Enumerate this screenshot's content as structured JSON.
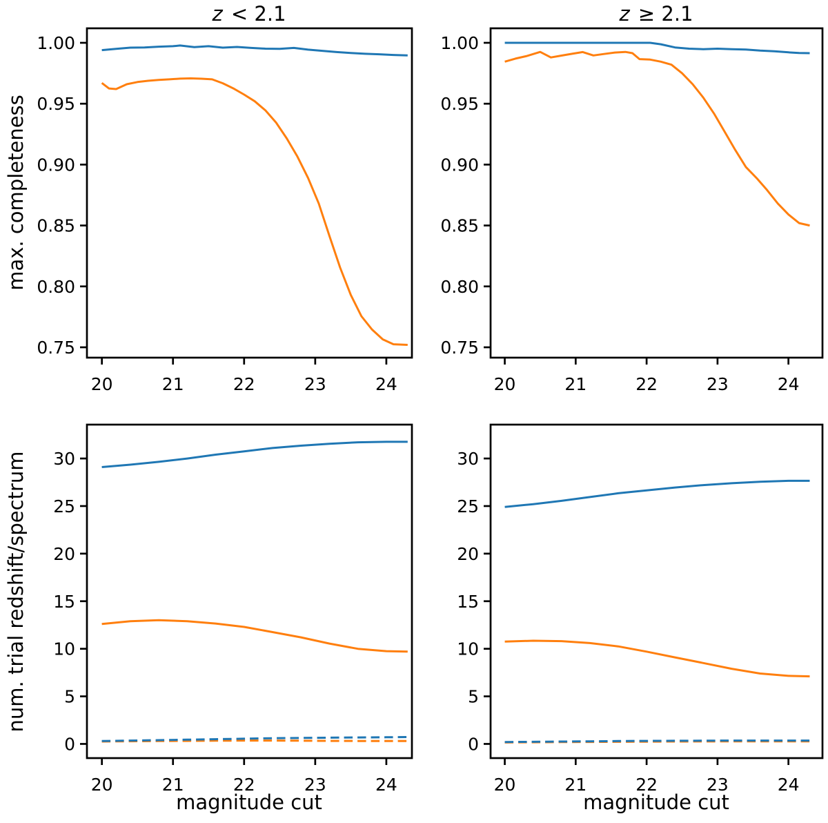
{
  "figure": {
    "background": "#ffffff",
    "columns": [
      {
        "title_var": "z",
        "title_rest": " < 2.1"
      },
      {
        "title_var": "z",
        "title_rest": " ≥ 2.1"
      }
    ]
  },
  "colors": {
    "blue": "#1f77b4",
    "orange": "#ff7f0e",
    "axis": "#000000"
  },
  "chart_data": [
    {
      "type": "line",
      "position": "top-left",
      "title": "z < 2.1",
      "xlabel": "",
      "ylabel": "max. completeness",
      "xlim": [
        19.79,
        24.36
      ],
      "ylim": [
        0.7415,
        1.0119
      ],
      "grid": false,
      "legend": "none",
      "xticks": {
        "values": [
          20,
          21,
          22,
          23,
          24
        ],
        "labels": [
          "20",
          "21",
          "22",
          "23",
          "24"
        ]
      },
      "yticks": {
        "values": [
          0.75,
          0.8,
          0.85,
          0.9,
          0.95,
          1.0
        ],
        "labels": [
          "0.75",
          "0.80",
          "0.85",
          "0.90",
          "0.95",
          "1.00"
        ]
      },
      "series": [
        {
          "name": "blue-solid",
          "color": "blue",
          "style": "solid",
          "x": [
            20.0,
            20.2,
            20.4,
            20.6,
            20.8,
            21.0,
            21.1,
            21.3,
            21.5,
            21.7,
            21.9,
            22.1,
            22.3,
            22.5,
            22.7,
            22.9,
            23.1,
            23.3,
            23.5,
            23.7,
            23.9,
            24.1,
            24.3
          ],
          "y": [
            0.994,
            0.995,
            0.996,
            0.9962,
            0.9968,
            0.9972,
            0.9978,
            0.9965,
            0.9972,
            0.996,
            0.9966,
            0.9958,
            0.9952,
            0.995,
            0.9958,
            0.9944,
            0.9934,
            0.9924,
            0.9916,
            0.991,
            0.9906,
            0.99,
            0.9896
          ]
        },
        {
          "name": "orange-solid",
          "color": "orange",
          "style": "solid",
          "x": [
            20.0,
            20.1,
            20.2,
            20.35,
            20.5,
            20.65,
            20.8,
            20.95,
            21.1,
            21.25,
            21.4,
            21.55,
            21.7,
            21.85,
            22.0,
            22.15,
            22.3,
            22.45,
            22.6,
            22.75,
            22.9,
            23.05,
            23.2,
            23.35,
            23.5,
            23.65,
            23.8,
            23.95,
            24.1,
            24.3
          ],
          "y": [
            0.967,
            0.9625,
            0.962,
            0.966,
            0.9678,
            0.9688,
            0.9695,
            0.97,
            0.9706,
            0.9708,
            0.9705,
            0.97,
            0.9668,
            0.9625,
            0.9575,
            0.952,
            0.9445,
            0.9345,
            0.9215,
            0.9065,
            0.889,
            0.868,
            0.8415,
            0.8155,
            0.793,
            0.7755,
            0.7645,
            0.7565,
            0.7525,
            0.752
          ]
        }
      ]
    },
    {
      "type": "line",
      "position": "top-right",
      "title": "z ≥ 2.1",
      "xlabel": "",
      "ylabel": "",
      "xlim": [
        19.8,
        24.48
      ],
      "ylim": [
        0.7415,
        1.0119
      ],
      "grid": false,
      "legend": "none",
      "xticks": {
        "values": [
          20,
          21,
          22,
          23,
          24
        ],
        "labels": [
          "20",
          "21",
          "22",
          "23",
          "24"
        ]
      },
      "yticks": {
        "values": [
          0.75,
          0.8,
          0.85,
          0.9,
          0.95,
          1.0
        ],
        "labels": [
          "0.75",
          "0.80",
          "0.85",
          "0.90",
          "0.95",
          "1.00"
        ]
      },
      "series": [
        {
          "name": "blue-solid",
          "color": "blue",
          "style": "solid",
          "x": [
            20.0,
            20.3,
            20.6,
            20.9,
            21.2,
            21.5,
            21.8,
            22.05,
            22.2,
            22.4,
            22.6,
            22.8,
            23.0,
            23.2,
            23.4,
            23.6,
            23.8,
            24.0,
            24.15,
            24.3
          ],
          "y": [
            1.0,
            1.0,
            1.0,
            1.0,
            1.0,
            1.0,
            1.0,
            1.0,
            0.9988,
            0.9962,
            0.9952,
            0.9948,
            0.9952,
            0.9948,
            0.9945,
            0.9936,
            0.993,
            0.9922,
            0.9916,
            0.9915
          ]
        },
        {
          "name": "orange-solid",
          "color": "orange",
          "style": "solid",
          "x": [
            20.0,
            20.15,
            20.3,
            20.5,
            20.65,
            20.8,
            20.95,
            21.1,
            21.25,
            21.4,
            21.55,
            21.7,
            21.8,
            21.9,
            22.05,
            22.2,
            22.35,
            22.5,
            22.65,
            22.8,
            22.95,
            23.1,
            23.25,
            23.4,
            23.55,
            23.7,
            23.85,
            24.0,
            24.15,
            24.3
          ],
          "y": [
            0.9845,
            0.987,
            0.989,
            0.9925,
            0.988,
            0.9895,
            0.991,
            0.9924,
            0.9896,
            0.9908,
            0.992,
            0.9925,
            0.9915,
            0.9866,
            0.9862,
            0.9845,
            0.982,
            0.975,
            0.966,
            0.955,
            0.942,
            0.927,
            0.912,
            0.898,
            0.889,
            0.879,
            0.868,
            0.859,
            0.852,
            0.85
          ]
        }
      ]
    },
    {
      "type": "line",
      "position": "bottom-left",
      "title": "",
      "xlabel": "magnitude cut",
      "ylabel": "num. trial redshift/spectrum",
      "xlim": [
        19.79,
        24.36
      ],
      "ylim": [
        -1.49,
        33.56
      ],
      "grid": false,
      "legend": "none",
      "xticks": {
        "values": [
          20,
          21,
          22,
          23,
          24
        ],
        "labels": [
          "20",
          "21",
          "22",
          "23",
          "24"
        ]
      },
      "yticks": {
        "values": [
          0,
          5,
          10,
          15,
          20,
          25,
          30
        ],
        "labels": [
          "0",
          "5",
          "10",
          "15",
          "20",
          "25",
          "30"
        ]
      },
      "series": [
        {
          "name": "blue-solid",
          "color": "blue",
          "style": "solid",
          "x": [
            20.0,
            20.4,
            20.8,
            21.2,
            21.6,
            22.0,
            22.4,
            22.8,
            23.2,
            23.6,
            24.0,
            24.3
          ],
          "y": [
            29.1,
            29.35,
            29.65,
            30.0,
            30.4,
            30.75,
            31.1,
            31.35,
            31.55,
            31.7,
            31.75,
            31.75
          ]
        },
        {
          "name": "orange-solid",
          "color": "orange",
          "style": "solid",
          "x": [
            20.0,
            20.4,
            20.8,
            21.2,
            21.6,
            22.0,
            22.4,
            22.8,
            23.2,
            23.6,
            24.0,
            24.3
          ],
          "y": [
            12.6,
            12.9,
            13.0,
            12.9,
            12.65,
            12.3,
            11.75,
            11.2,
            10.55,
            10.0,
            9.75,
            9.7
          ]
        },
        {
          "name": "orange-dashed",
          "color": "orange",
          "style": "dashed",
          "x": [
            20.0,
            20.4,
            20.8,
            21.2,
            21.6,
            22.0,
            22.4,
            22.8,
            23.2,
            23.6,
            24.0,
            24.3
          ],
          "y": [
            0.25,
            0.28,
            0.3,
            0.32,
            0.34,
            0.35,
            0.35,
            0.34,
            0.32,
            0.31,
            0.3,
            0.3
          ]
        },
        {
          "name": "blue-dashed",
          "color": "blue",
          "style": "dashed",
          "x": [
            20.0,
            20.4,
            20.8,
            21.2,
            21.6,
            22.0,
            22.4,
            22.8,
            23.2,
            23.6,
            24.0,
            24.3
          ],
          "y": [
            0.3,
            0.35,
            0.4,
            0.45,
            0.5,
            0.55,
            0.6,
            0.63,
            0.66,
            0.68,
            0.7,
            0.72
          ]
        }
      ]
    },
    {
      "type": "line",
      "position": "bottom-right",
      "title": "",
      "xlabel": "magnitude cut",
      "ylabel": "",
      "xlim": [
        19.8,
        24.48
      ],
      "ylim": [
        -1.49,
        33.56
      ],
      "grid": false,
      "legend": "none",
      "xticks": {
        "values": [
          20,
          21,
          22,
          23,
          24
        ],
        "labels": [
          "20",
          "21",
          "22",
          "23",
          "24"
        ]
      },
      "yticks": {
        "values": [
          0,
          5,
          10,
          15,
          20,
          25,
          30
        ],
        "labels": [
          "0",
          "5",
          "10",
          "15",
          "20",
          "25",
          "30"
        ]
      },
      "series": [
        {
          "name": "blue-solid",
          "color": "blue",
          "style": "solid",
          "x": [
            20.0,
            20.4,
            20.8,
            21.2,
            21.6,
            22.0,
            22.4,
            22.8,
            23.2,
            23.6,
            24.0,
            24.3
          ],
          "y": [
            24.9,
            25.2,
            25.55,
            25.95,
            26.35,
            26.65,
            26.95,
            27.2,
            27.4,
            27.55,
            27.65,
            27.65
          ]
        },
        {
          "name": "orange-solid",
          "color": "orange",
          "style": "solid",
          "x": [
            20.0,
            20.4,
            20.8,
            21.2,
            21.6,
            22.0,
            22.4,
            22.8,
            23.2,
            23.6,
            24.0,
            24.3
          ],
          "y": [
            10.75,
            10.85,
            10.8,
            10.6,
            10.25,
            9.7,
            9.1,
            8.5,
            7.9,
            7.4,
            7.15,
            7.1
          ]
        },
        {
          "name": "orange-dashed",
          "color": "orange",
          "style": "dashed",
          "x": [
            20.0,
            20.4,
            20.8,
            21.2,
            21.6,
            22.0,
            22.4,
            22.8,
            23.2,
            23.6,
            24.0,
            24.3
          ],
          "y": [
            0.15,
            0.17,
            0.19,
            0.21,
            0.22,
            0.24,
            0.25,
            0.26,
            0.27,
            0.27,
            0.27,
            0.27
          ]
        },
        {
          "name": "blue-dashed",
          "color": "blue",
          "style": "dashed",
          "x": [
            20.0,
            20.4,
            20.8,
            21.2,
            21.6,
            22.0,
            22.4,
            22.8,
            23.2,
            23.6,
            24.0,
            24.3
          ],
          "y": [
            0.2,
            0.22,
            0.25,
            0.27,
            0.3,
            0.32,
            0.33,
            0.34,
            0.35,
            0.35,
            0.35,
            0.35
          ]
        }
      ]
    }
  ]
}
